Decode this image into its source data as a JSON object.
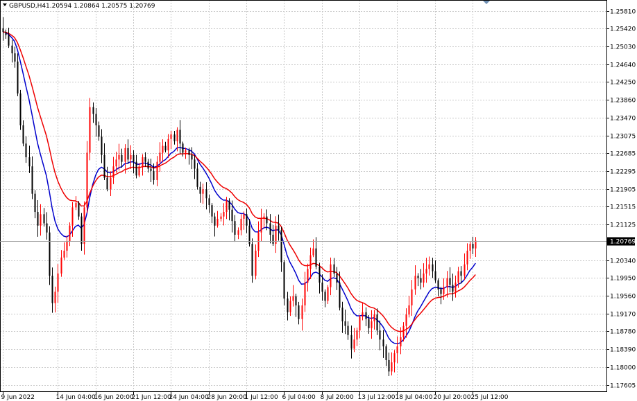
{
  "header": {
    "symbol_timeframe": "GBPUSD,H4",
    "ohlc": "1.20594 1.20864 1.20575 1.20769"
  },
  "chart_data": {
    "type": "candlestick",
    "y_range": [
      1.1745,
      1.2605
    ],
    "price_ticks": [
      "1.25810",
      "1.25420",
      "1.25030",
      "1.24640",
      "1.24250",
      "1.23860",
      "1.23470",
      "1.23075",
      "1.22685",
      "1.22295",
      "1.21905",
      "1.21515",
      "1.21125",
      "1.20340",
      "1.19950",
      "1.19560",
      "1.19170",
      "1.18780",
      "1.18390",
      "1.18000",
      "1.17605"
    ],
    "current_price": "1.20769",
    "time_ticks": [
      {
        "label": "9 Jun 2022",
        "i": 0
      },
      {
        "label": "14 Jun 04:00",
        "i": 19
      },
      {
        "label": "16 Jun 20:00",
        "i": 32
      },
      {
        "label": "21 Jun 12:00",
        "i": 45
      },
      {
        "label": "24 Jun 04:00",
        "i": 58
      },
      {
        "label": "28 Jun 20:00",
        "i": 71
      },
      {
        "label": "1 Jul 12:00",
        "i": 84
      },
      {
        "label": "6 Jul 04:00",
        "i": 97
      },
      {
        "label": "8 Jul 20:00",
        "i": 110
      },
      {
        "label": "13 Jul 12:00",
        "i": 123
      },
      {
        "label": "18 Jul 04:00",
        "i": 136
      },
      {
        "label": "20 Jul 20:00",
        "i": 149
      },
      {
        "label": "25 Jul 12:00",
        "i": 162
      }
    ],
    "closes": [
      1.2535,
      1.2528,
      1.2505,
      1.2488,
      1.247,
      1.24,
      1.233,
      1.229,
      1.226,
      1.224,
      1.218,
      1.214,
      1.211,
      1.2135,
      1.2115,
      1.2095,
      1.2,
      1.194,
      1.1965,
      1.2005,
      1.204,
      1.2055,
      1.2075,
      1.211,
      1.215,
      1.216,
      1.213,
      1.207,
      1.215,
      1.227,
      1.237,
      1.2355,
      1.233,
      1.2305,
      1.2265,
      1.2215,
      1.219,
      1.2215,
      1.224,
      1.2255,
      1.2265,
      1.225,
      1.228,
      1.2255,
      1.2265,
      1.225,
      1.222,
      1.224,
      1.226,
      1.225,
      1.2235,
      1.223,
      1.221,
      1.225,
      1.227,
      1.2285,
      1.2275,
      1.23,
      1.231,
      1.2295,
      1.232,
      1.229,
      1.227,
      1.2275,
      1.2265,
      1.2255,
      1.2235,
      1.2195,
      1.218,
      1.219,
      1.217,
      1.2155,
      1.213,
      1.211,
      1.2125,
      1.213,
      1.214,
      1.2165,
      1.2145,
      1.212,
      1.209,
      1.21,
      1.2125,
      1.2135,
      1.211,
      1.207,
      1.2,
      1.2055,
      1.2095,
      1.2125,
      1.213,
      1.2115,
      1.209,
      1.207,
      1.211,
      1.21,
      1.203,
      1.195,
      1.192,
      1.1945,
      1.1955,
      1.1935,
      1.1905,
      1.1935,
      1.1985,
      1.2015,
      1.2045,
      1.206,
      1.202,
      1.1985,
      1.1965,
      1.1945,
      1.1975,
      1.2025,
      1.2005,
      1.1985,
      1.193,
      1.19,
      1.189,
      1.187,
      1.184,
      1.186,
      1.188,
      1.191,
      1.192,
      1.1905,
      1.1885,
      1.19,
      1.1915,
      1.188,
      1.186,
      1.1845,
      1.1815,
      1.179,
      1.181,
      1.183,
      1.1845,
      1.1865,
      1.189,
      1.1915,
      1.1935,
      1.197,
      1.2,
      1.1995,
      1.1985,
      1.2005,
      1.2015,
      1.2025,
      1.201,
      1.199,
      1.197,
      1.196,
      1.1975,
      1.1995,
      1.198,
      1.1965,
      1.1985,
      1.201,
      1.2,
      1.2025,
      1.2055,
      1.207,
      1.206,
      1.2077
    ]
  }
}
